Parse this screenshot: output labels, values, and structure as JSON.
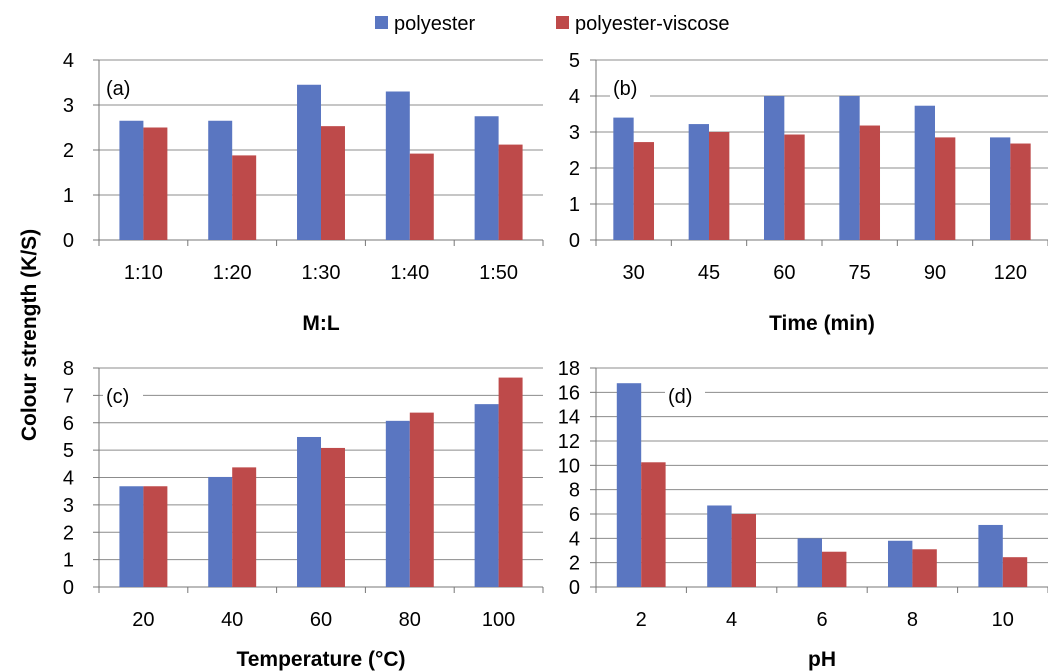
{
  "figure": {
    "shared_ylabel": "Colour strength (K/S)",
    "colors": {
      "polyester": "#5A76C1",
      "polyester-viscose": "#BE4A4A"
    },
    "legend": [
      {
        "name": "polyester",
        "color": "#5A76C1"
      },
      {
        "name": "polyester-viscose",
        "color": "#BE4A4A"
      }
    ]
  },
  "chart_data": [
    {
      "type": "bar",
      "panel_label": "(a)",
      "xlabel": "M:L",
      "categories": [
        "1:10",
        "1:20",
        "1:30",
        "1:40",
        "1:50"
      ],
      "series": [
        {
          "name": "polyester",
          "values": [
            2.65,
            2.65,
            3.45,
            3.3,
            2.75
          ]
        },
        {
          "name": "polyester-viscose",
          "values": [
            2.5,
            1.88,
            2.53,
            1.92,
            2.12
          ]
        }
      ],
      "ylim": [
        0,
        4
      ],
      "yticks": [
        "0",
        "1",
        "2",
        "3",
        "4"
      ],
      "gridlines": true,
      "legend": "top-center"
    },
    {
      "type": "bar",
      "panel_label": "(b)",
      "xlabel": "Time (min)",
      "categories": [
        "30",
        "45",
        "60",
        "75",
        "90",
        "120"
      ],
      "series": [
        {
          "name": "polyester",
          "values": [
            3.4,
            3.22,
            4.0,
            4.0,
            3.73,
            2.85
          ]
        },
        {
          "name": "polyester-viscose",
          "values": [
            2.72,
            3.0,
            2.93,
            3.18,
            2.85,
            2.68
          ]
        }
      ],
      "ylim": [
        0,
        5
      ],
      "yticks": [
        "0",
        "1",
        "2",
        "3",
        "4",
        "5"
      ],
      "gridlines": true
    },
    {
      "type": "bar",
      "panel_label": "(c)",
      "xlabel": "Temperature (°C)",
      "categories": [
        "20",
        "40",
        "60",
        "80",
        "100"
      ],
      "series": [
        {
          "name": "polyester",
          "values": [
            3.68,
            4.02,
            5.48,
            6.07,
            6.68
          ]
        },
        {
          "name": "polyester-viscose",
          "values": [
            3.68,
            4.37,
            5.08,
            6.37,
            7.65
          ]
        }
      ],
      "ylim": [
        0,
        8
      ],
      "yticks": [
        "0",
        "1",
        "2",
        "3",
        "4",
        "5",
        "6",
        "7",
        "8"
      ],
      "gridlines": true
    },
    {
      "type": "bar",
      "panel_label": "(d)",
      "xlabel": "pH",
      "categories": [
        "2",
        "4",
        "6",
        "8",
        "10"
      ],
      "series": [
        {
          "name": "polyester",
          "values": [
            16.75,
            6.7,
            4.0,
            3.8,
            5.1
          ]
        },
        {
          "name": "polyester-viscose",
          "values": [
            10.25,
            6.0,
            2.9,
            3.1,
            2.45
          ]
        }
      ],
      "ylim": [
        0,
        18
      ],
      "yticks": [
        "0",
        "2",
        "4",
        "6",
        "8",
        "10",
        "12",
        "14",
        "16",
        "18"
      ],
      "gridlines": true
    }
  ]
}
